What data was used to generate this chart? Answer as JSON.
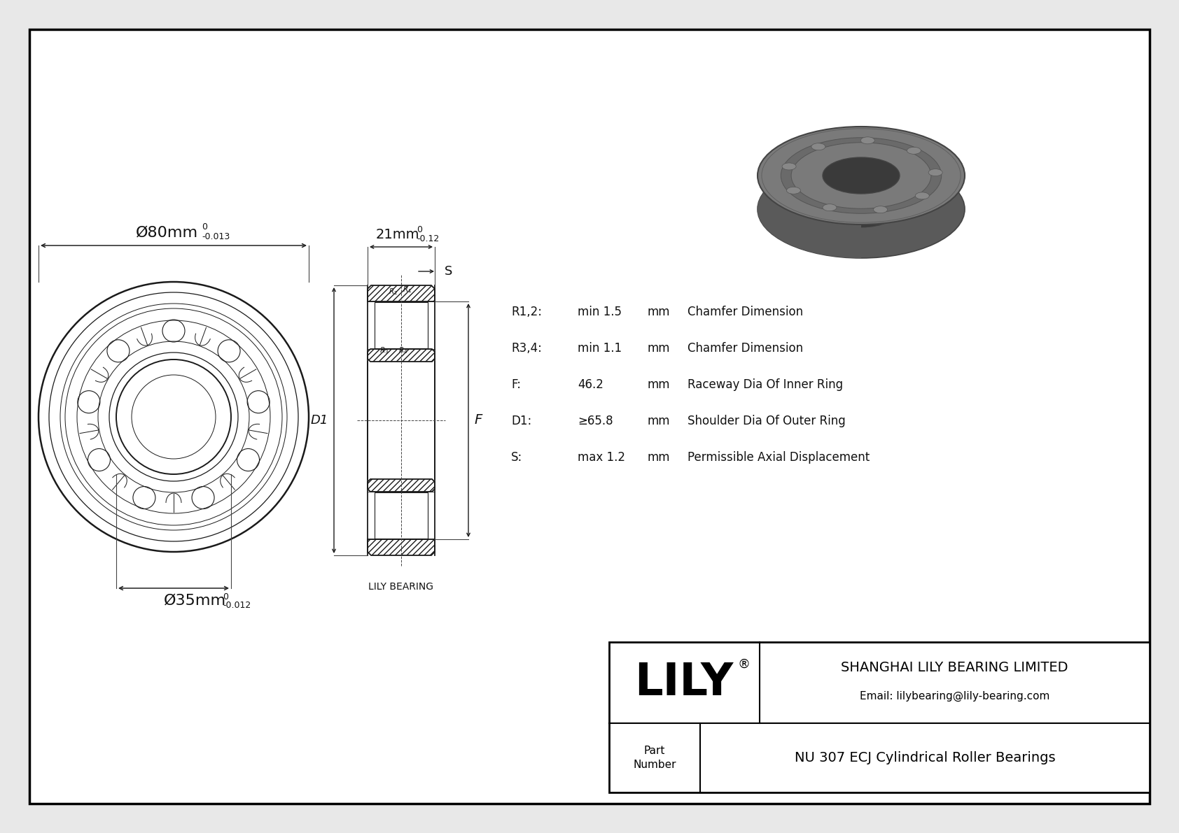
{
  "bg_color": "#e8e8e8",
  "drawing_bg": "#ffffff",
  "border_color": "#000000",
  "company": "SHANGHAI LILY BEARING LIMITED",
  "email": "Email: lilybearing@lily-bearing.com",
  "part_number": "NU 307 ECJ Cylindrical Roller Bearings",
  "lily_logo": "LILY",
  "dim_od_text": "Ø80mm",
  "dim_od_sup": "0",
  "dim_od_sub": "-0.013",
  "dim_id_text": "Ø35mm",
  "dim_id_sup": "0",
  "dim_id_sub": "-0.012",
  "dim_w_text": "21mm",
  "dim_w_sup": "0",
  "dim_w_sub": "-0.12",
  "params": [
    {
      "label": "R1,2:",
      "value": "min 1.5",
      "unit": "mm",
      "desc": "Chamfer Dimension"
    },
    {
      "label": "R3,4:",
      "value": "min 1.1",
      "unit": "mm",
      "desc": "Chamfer Dimension"
    },
    {
      "label": "F:",
      "value": "46.2",
      "unit": "mm",
      "desc": "Raceway Dia Of Inner Ring"
    },
    {
      "label": "D1:",
      "value": "≥65.8",
      "unit": "mm",
      "desc": "Shoulder Dia Of Outer Ring"
    },
    {
      "label": "S:",
      "value": "max 1.2",
      "unit": "mm",
      "desc": "Permissible Axial Displacement"
    }
  ],
  "lily_bearing_label": "LILY BEARING"
}
